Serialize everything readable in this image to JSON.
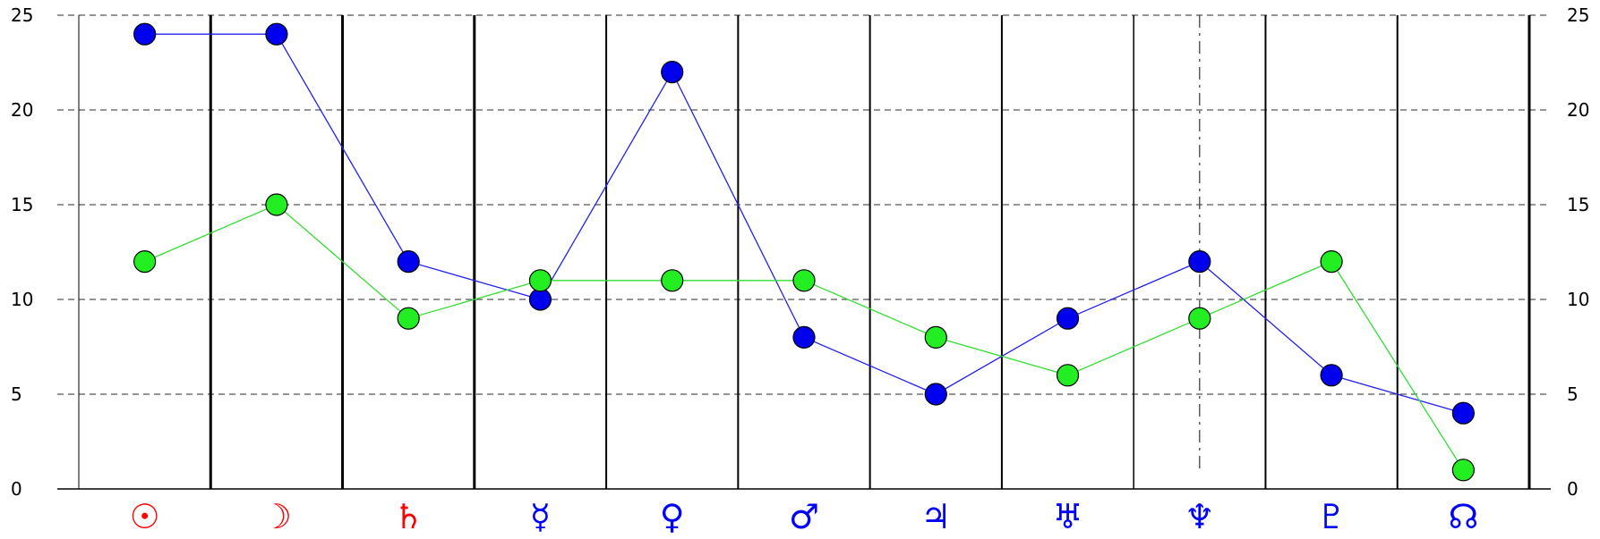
{
  "chart_data": {
    "type": "line",
    "categories": [
      "Sun",
      "Moon",
      "Saturn",
      "Mercury",
      "Venus",
      "Mars",
      "Jupiter",
      "Uranus",
      "Neptune",
      "Pluto",
      "Node"
    ],
    "category_symbols": [
      "☉",
      "☽",
      "♄",
      "☿",
      "♀",
      "♂",
      "♃",
      "♅",
      "♆",
      "♇",
      "☊"
    ],
    "category_symbol_colors": [
      "#ff0000",
      "#ff0000",
      "#ff0000",
      "#0000ff",
      "#0000ff",
      "#0000ff",
      "#0000ff",
      "#0000ff",
      "#0000ff",
      "#0000ff",
      "#0000ff"
    ],
    "series": [
      {
        "values": [
          24,
          24,
          12,
          10,
          22,
          8,
          5,
          9,
          12,
          6,
          4
        ],
        "color": "#0000ee",
        "line_color": "#2222ee"
      },
      {
        "values": [
          12,
          15,
          9,
          11,
          11,
          11,
          8,
          6,
          9,
          12,
          1
        ],
        "color": "#22ee22",
        "line_color": "#33dd33"
      }
    ],
    "ylim": [
      0,
      25
    ],
    "yticks": [
      0,
      5,
      10,
      15,
      20,
      25
    ],
    "y_axis_sides": "left-and-right",
    "grid": "horizontal-dashed",
    "legend": "none",
    "title": "",
    "xlabel": "",
    "ylabel": ""
  }
}
